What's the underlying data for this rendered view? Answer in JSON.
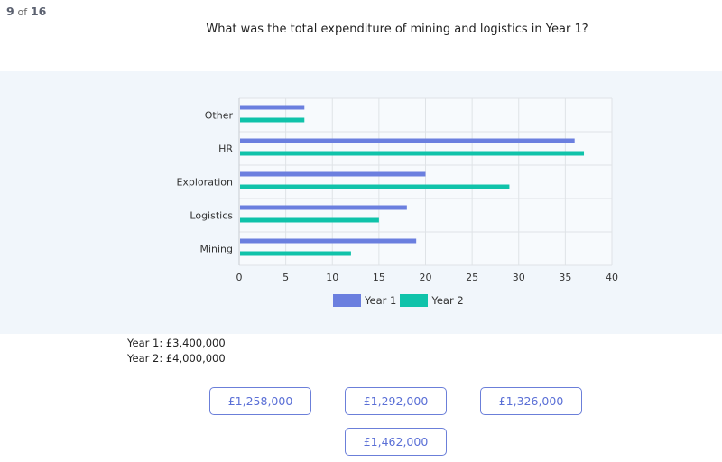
{
  "progress": {
    "current": "9",
    "of_word": "of",
    "total": "16"
  },
  "question": "What was the total expenditure of mining and logistics in Year 1?",
  "colors": {
    "year1": "#6b7fdf",
    "year2": "#10c3aa",
    "grid": "#dfe3e7",
    "panel_bg": "#f1f6fb",
    "accent": "#5a6fd6"
  },
  "chart_data": {
    "type": "bar",
    "orientation": "horizontal",
    "categories": [
      "Other",
      "HR",
      "Exploration",
      "Logistics",
      "Mining"
    ],
    "series": [
      {
        "name": "Year 1",
        "values": [
          7,
          36,
          20,
          18,
          19
        ]
      },
      {
        "name": "Year 2",
        "values": [
          7,
          37,
          29,
          15,
          12
        ]
      }
    ],
    "xticks": [
      "0",
      "5",
      "10",
      "15",
      "20",
      "25",
      "30",
      "35",
      "40"
    ],
    "xlim": [
      0,
      40
    ],
    "grid": true,
    "legend_position": "bottom"
  },
  "totals": {
    "year1": "Year 1: £3,400,000",
    "year2": "Year 2: £4,000,000"
  },
  "answers": [
    {
      "label": "£1,258,000"
    },
    {
      "label": "£1,292,000"
    },
    {
      "label": "£1,326,000"
    },
    {
      "label": "£1,462,000"
    }
  ]
}
